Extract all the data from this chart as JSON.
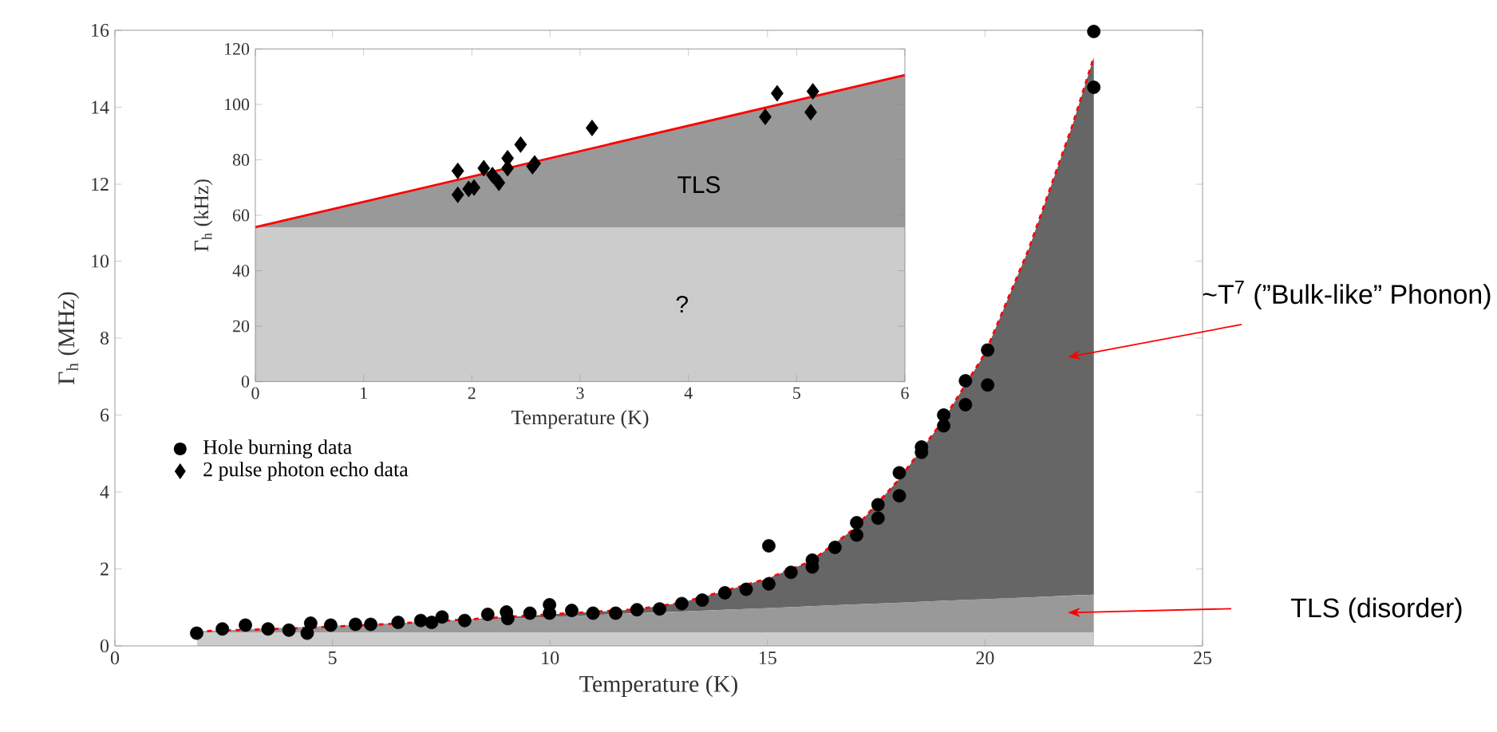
{
  "chart_data": [
    {
      "type": "scatter",
      "xlabel": "Temperature (K)",
      "ylabel": "Γ$_{h}$ (MHz)",
      "xlim": [
        0,
        25
      ],
      "ylim": [
        0,
        16
      ],
      "xticks": [
        0,
        5,
        10,
        15,
        20,
        25
      ],
      "yticks": [
        0,
        2,
        4,
        6,
        8,
        10,
        12,
        14,
        16
      ],
      "legend": "left",
      "series": [
        {
          "type": "area",
          "color": "#999999",
          "x": [
            1.9,
            22.5
          ],
          "values": [
            0.38,
            1.33
          ]
        },
        {
          "type": "area",
          "color": "#cccccc",
          "x": [
            1.9,
            22.5
          ],
          "values": [
            0.35,
            0.35
          ]
        },
        {
          "type": "line",
          "color": "#ff0000",
          "line_style": "dashed",
          "x": [
            1.9,
            4,
            6,
            8,
            10,
            12,
            13,
            14,
            15,
            16,
            17,
            18,
            19,
            20,
            21,
            22,
            22.5
          ],
          "values": [
            0.38,
            0.45,
            0.55,
            0.68,
            0.82,
            0.95,
            1.12,
            1.42,
            1.75,
            2.2,
            3.05,
            4.3,
            5.8,
            7.6,
            10.3,
            13.5,
            15.3
          ],
          "lower": [
            0.38,
            0.45,
            0.55,
            0.66,
            0.75,
            0.85,
            0.89,
            0.94,
            0.98,
            1.03,
            1.08,
            1.12,
            1.17,
            1.21,
            1.26,
            1.31,
            1.33
          ],
          "upper": [
            0.38,
            0.45,
            0.55,
            0.68,
            0.82,
            0.95,
            1.12,
            1.42,
            1.75,
            2.2,
            3.05,
            4.3,
            5.8,
            7.6,
            10.3,
            13.5,
            15.3
          ]
        },
        {
          "name": "Hole burning data",
          "color": "#000000",
          "marker": "circle",
          "x": [
            1.88,
            2.47,
            3.0,
            3.52,
            4.0,
            4.42,
            4.5,
            4.96,
            5.53,
            5.88,
            6.51,
            7.03,
            7.28,
            7.52,
            8.04,
            8.57,
            9.0,
            9.03,
            9.54,
            9.99,
            9.99,
            10.5,
            10.99,
            11.51,
            12.0,
            12.52,
            13.03,
            13.5,
            14.02,
            14.51,
            15.03,
            15.03,
            15.54,
            16.03,
            16.03,
            16.55,
            17.05,
            17.05,
            17.54,
            17.54,
            18.03,
            18.03,
            18.54,
            18.54,
            19.05,
            19.05,
            19.55,
            19.55,
            20.06,
            20.06,
            22.5,
            22.5
          ],
          "values": [
            0.33,
            0.44,
            0.54,
            0.44,
            0.41,
            0.33,
            0.59,
            0.54,
            0.56,
            0.56,
            0.61,
            0.66,
            0.61,
            0.75,
            0.66,
            0.82,
            0.88,
            0.71,
            0.85,
            1.07,
            0.85,
            0.92,
            0.85,
            0.85,
            0.94,
            0.96,
            1.1,
            1.19,
            1.38,
            1.47,
            1.61,
            2.6,
            1.91,
            2.05,
            2.23,
            2.56,
            2.88,
            3.2,
            3.32,
            3.67,
            3.9,
            4.5,
            5.03,
            5.17,
            5.72,
            6.0,
            6.27,
            6.89,
            6.78,
            7.69,
            14.52,
            15.97
          ]
        }
      ],
      "annotations": [
        "~T$^{7}$ (”Bulk-like” Phonon)",
        "TLS (disorder)"
      ]
    },
    {
      "type": "scatter",
      "xlabel": "Temperature (K)",
      "ylabel": "Γ$_{h}$ (kHz)",
      "xlim": [
        0,
        6
      ],
      "ylim": [
        0,
        120
      ],
      "xticks": [
        0,
        1,
        2,
        3,
        4,
        5,
        6
      ],
      "yticks": [
        0,
        20,
        40,
        60,
        80,
        100,
        120
      ],
      "series": [
        {
          "type": "area",
          "color": "#cccccc",
          "x": [
            0,
            6
          ],
          "values": [
            55.7,
            55.7
          ]
        },
        {
          "type": "line",
          "color": "#ff0000",
          "line_style": "solid",
          "x": [
            0,
            6
          ],
          "values": [
            55.7,
            110.6
          ],
          "lower": [
            55.7,
            55.7
          ],
          "upper": [
            55.7,
            110.6
          ]
        },
        {
          "name": "2 pulse photon echo data",
          "color": "#000000",
          "marker": "diamond",
          "x": [
            1.87,
            1.87,
            1.97,
            2.02,
            2.11,
            2.19,
            2.25,
            2.33,
            2.33,
            2.45,
            2.56,
            2.58,
            3.11,
            4.71,
            4.82,
            5.13,
            5.15
          ],
          "values": [
            76,
            67.4,
            69.5,
            70,
            77,
            74.5,
            71.7,
            77,
            80.6,
            85.5,
            77.7,
            78.7,
            91.5,
            95.5,
            104,
            97.2,
            104.7
          ]
        }
      ],
      "annotations": [
        "TLS",
        "?"
      ]
    }
  ]
}
